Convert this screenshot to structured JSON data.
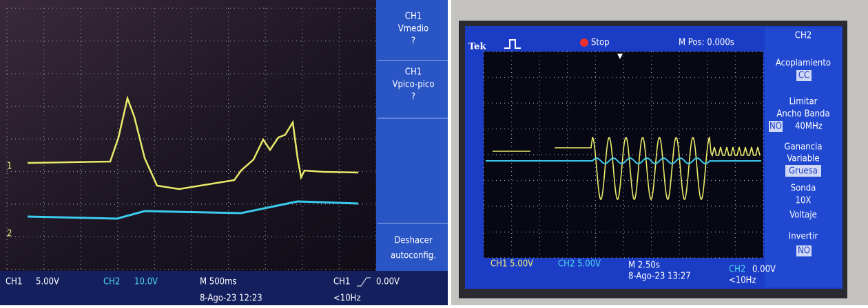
{
  "left_screen": {
    "menu": [
      {
        "lines": [
          "CH1",
          "Vmedio",
          "?"
        ]
      },
      {
        "lines": [
          "CH1",
          "Vpico-pico",
          "?"
        ]
      },
      {
        "lines": [
          "Deshacer",
          "autoconfig."
        ]
      }
    ],
    "markers": [
      "1",
      "2"
    ],
    "status": {
      "ch1_label": "CH1",
      "ch1_scale": "5.00V",
      "ch2_label": "CH2",
      "ch2_scale": "10.0V",
      "timebase": "M 500ms",
      "datetime": "8-Ago-23 12:23",
      "trigger_source": "CH1",
      "trigger_level": "0.00V",
      "trigger_freq": "<10Hz"
    }
  },
  "right_screen": {
    "header": {
      "brand": "Tek",
      "state": "Stop",
      "position": "M Pos: 0.000s",
      "channel": "CH2"
    },
    "menu": {
      "coupling_label": "Acoplamiento",
      "coupling_value": "CC",
      "bandwidth_label_1": "Limitar",
      "bandwidth_label_2": "Ancho Banda",
      "bandwidth_on": "NO",
      "bandwidth_value": "40MHz",
      "gain_label_1": "Ganancia",
      "gain_label_2": "Variable",
      "gain_value": "Gruesa",
      "probe_label": "Sonda",
      "probe_value_1": "10X",
      "probe_value_2": "Voltaje",
      "invert_label": "Invertir",
      "invert_value": "NO"
    },
    "status": {
      "ch1": "CH1 5.00V",
      "ch2": "CH2 5.00V",
      "timebase": "M 2.50s",
      "datetime": "8-Ago-23 13:27",
      "trigger_source": "CH2",
      "trigger_level": "0.00V",
      "trigger_freq": "<10Hz"
    }
  }
}
